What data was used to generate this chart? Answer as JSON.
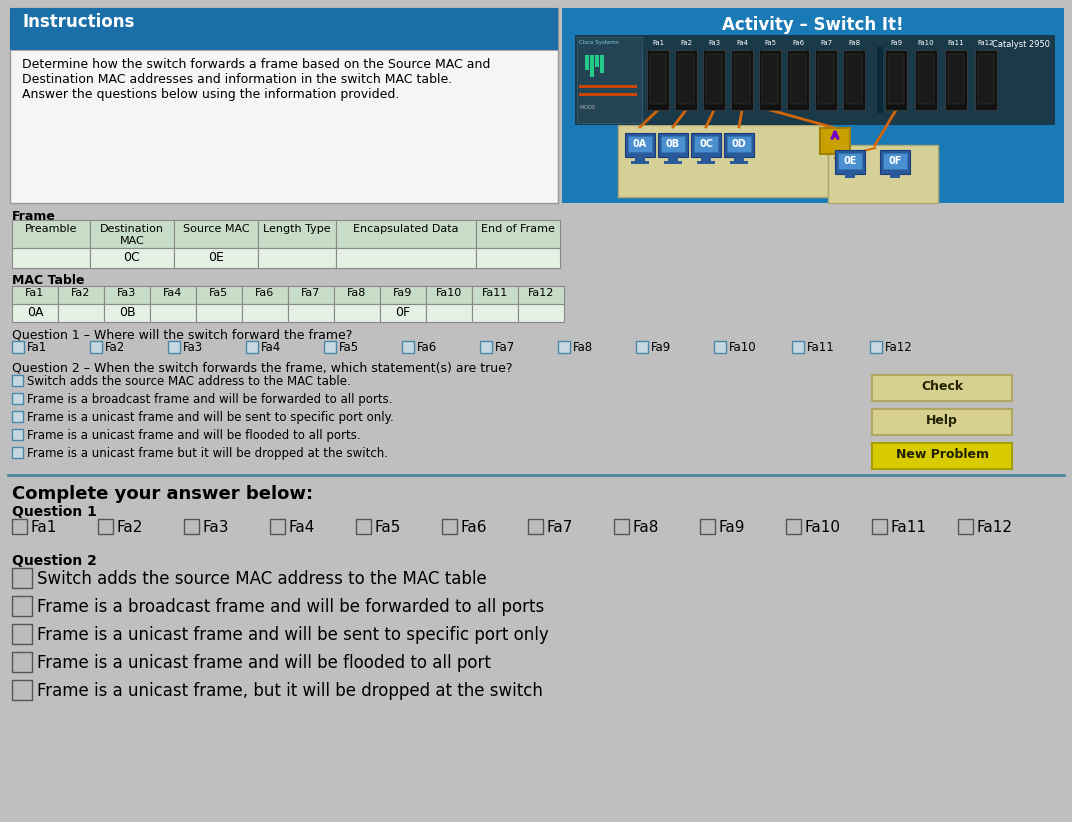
{
  "bg_color": "#c0bfbf",
  "instructions_title": "Instructions",
  "instructions_body": "Determine how the switch forwards a frame based on the Source MAC and\nDestination MAC addresses and information in the switch MAC table.\nAnswer the questions below using the information provided.",
  "activity_title": "Activity – Switch It!",
  "frame_label": "Frame",
  "frame_headers": [
    "Preamble",
    "Destination\nMAC",
    "Source MAC",
    "Length Type",
    "Encapsulated Data",
    "End of Frame"
  ],
  "frame_values": [
    "",
    "0C",
    "0E",
    "",
    "",
    ""
  ],
  "mac_table_label": "MAC Table",
  "mac_ports": [
    "Fa1",
    "Fa2",
    "Fa3",
    "Fa4",
    "Fa5",
    "Fa6",
    "Fa7",
    "Fa8",
    "Fa9",
    "Fa10",
    "Fa11",
    "Fa12"
  ],
  "mac_values": [
    "0A",
    "",
    "0B",
    "",
    "",
    "",
    "",
    "",
    "0F",
    "",
    "",
    ""
  ],
  "q1_label": "Question 1 – Where will the switch forward the frame?",
  "q1_ports": [
    "Fa1",
    "Fa2",
    "Fa3",
    "Fa4",
    "Fa5",
    "Fa6",
    "Fa7",
    "Fa8",
    "Fa9",
    "Fa10",
    "Fa11",
    "Fa12"
  ],
  "q2_label": "Question 2 – When the switch forwards the frame, which statement(s) are true?",
  "q2_options": [
    "Switch adds the source MAC address to the MAC table.",
    "Frame is a broadcast frame and will be forwarded to all ports.",
    "Frame is a unicast frame and will be sent to specific port only.",
    "Frame is a unicast frame and will be flooded to all ports.",
    "Frame is a unicast frame but it will be dropped at the switch."
  ],
  "complete_label": "Complete your answer below:",
  "q1_answer_label": "Question 1",
  "q2_answer_label": "Question 2",
  "q2_answer_options": [
    "Switch adds the source MAC address to the MAC table",
    "Frame is a broadcast frame and will be forwarded to all ports",
    "Frame is a unicast frame and will be sent to specific port only",
    "Frame is a unicast frame and will be flooded to all port",
    "Frame is a unicast frame, but it will be dropped at the switch"
  ],
  "check_btn": "Check",
  "help_btn": "Help",
  "new_problem_btn": "New Problem",
  "cable_color": "#d4660a",
  "table_header_bg": "#c8ddc8",
  "table_row_bg": "#e4f0e4",
  "white_panel": "#f5f5f5",
  "instr_blue": "#1a6fa8",
  "activity_teal": "#1a7ab5",
  "switch_dark": "#1a3a4a",
  "computer_blue": "#2a5a9a",
  "screen_blue": "#4a90d0",
  "comp_bg_yellow": "#d4d098",
  "hub_yellow": "#c8a000",
  "arrow_purple": "#7700cc",
  "check_btn_color": "#d8d090",
  "help_btn_color": "#d8d090",
  "new_problem_color": "#d8cc00",
  "separator_color": "#4a8a9a",
  "cb_fill": "#c8d8e0",
  "cb_edge": "#4a88aa",
  "cb_fill2": "#bbbbbb",
  "cb_edge2": "#555555"
}
